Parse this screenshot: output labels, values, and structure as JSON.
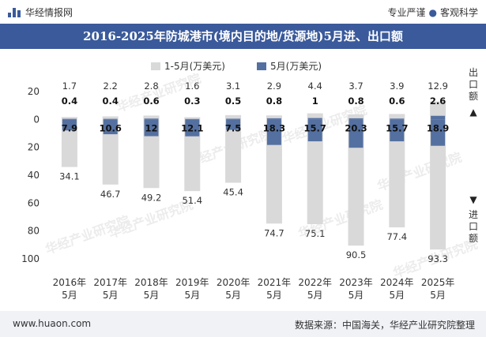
{
  "header": {
    "brand": "华经情报网",
    "tagline_left": "专业严谨",
    "tagline_right": "客观科学"
  },
  "watermark": {
    "name": "华经产业研究院",
    "url": "www.huaon.com"
  },
  "footer": {
    "url": "www.huaon.com",
    "source": "数据来源：中国海关，华经产业研究院整理"
  },
  "chart_data": {
    "type": "bar",
    "title": "2016-2025年防城港市(境内目的地/货源地)5月进、出口额",
    "categories": [
      "2016年5月",
      "2017年5月",
      "2018年5月",
      "2019年5月",
      "2020年5月",
      "2021年5月",
      "2022年5月",
      "2023年5月",
      "2024年5月",
      "2025年5月"
    ],
    "series": [
      {
        "name": "1-5月(万美元)",
        "color": "#d9d9d9",
        "export": [
          1.7,
          2.2,
          2.8,
          1.6,
          3.1,
          2.9,
          4.4,
          3.7,
          3.9,
          12.9
        ],
        "import": [
          34.1,
          46.7,
          49.2,
          51.4,
          45.4,
          74.7,
          75.1,
          90.5,
          77.4,
          93.3
        ],
        "import_labels": [
          "34.1",
          "46.7",
          "49.2",
          "51.4",
          "45.4",
          "74.7",
          "75.1",
          "90.5",
          "77.4",
          "93.3"
        ],
        "export_labels": [
          "1.7",
          "2.2",
          "2.8",
          "1.6",
          "3.1",
          "2.9",
          "4.4",
          "3.7",
          "3.9",
          "12.9"
        ]
      },
      {
        "name": "5月(万美元)",
        "color": "#5470a0",
        "export": [
          0.4,
          0.4,
          0.6,
          0.3,
          0.5,
          0.8,
          1,
          0.8,
          0.6,
          2.6
        ],
        "import": [
          7.9,
          10.6,
          12,
          12.1,
          7.5,
          18.3,
          15.7,
          20.3,
          15.7,
          18.9
        ],
        "export_labels": [
          "0.4",
          "0.4",
          "0.6",
          "0.3",
          "0.5",
          "0.8",
          "1",
          "0.8",
          "0.6",
          "2.6"
        ],
        "import_labels": [
          "7.9",
          "10.6",
          "12",
          "12.1",
          "7.5",
          "18.3",
          "15.7",
          "20.3",
          "15.7",
          "18.9"
        ]
      }
    ],
    "yaxis": {
      "ticks": [
        20,
        0,
        20,
        40,
        60,
        80,
        100
      ],
      "tick_values": [
        20,
        0,
        -20,
        -40,
        -60,
        -80,
        -100
      ],
      "ylim": [
        -100,
        20
      ]
    },
    "right_labels": {
      "export": "出口额",
      "import": "进口额"
    }
  }
}
